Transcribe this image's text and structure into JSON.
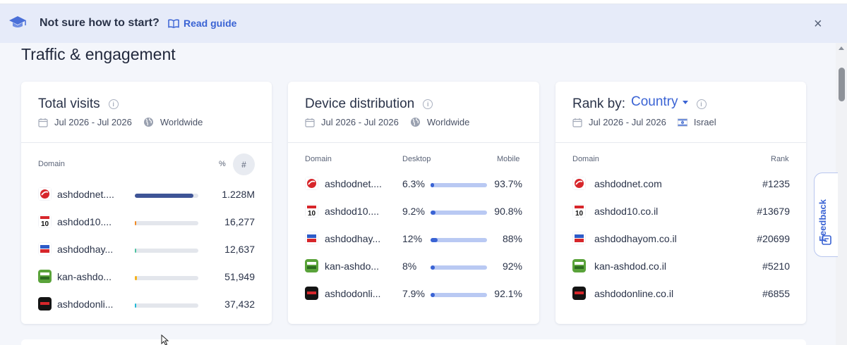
{
  "banner": {
    "message": "Not sure how to start?",
    "guide_label": "Read guide",
    "close_label": "×"
  },
  "section_title": "Traffic & engagement",
  "total_visits": {
    "title": "Total visits",
    "date_range": "Jul 2026 - Jul 2026",
    "region": "Worldwide",
    "headers": {
      "domain": "Domain",
      "percent": "%",
      "number": "#"
    },
    "rows": [
      {
        "domain": "ashdodnet....",
        "value": "1.228M",
        "share": 0.92,
        "color": "#3e5496"
      },
      {
        "domain": "ashdod10....",
        "value": "16,277",
        "share": 0.012,
        "color": "#f08a24"
      },
      {
        "domain": "ashdodhay...",
        "value": "12,637",
        "share": 0.009,
        "color": "#4fc3a1"
      },
      {
        "domain": "kan-ashdo...",
        "value": "51,949",
        "share": 0.037,
        "color": "#f5b21e"
      },
      {
        "domain": "ashdodonli...",
        "value": "37,432",
        "share": 0.027,
        "color": "#21b8d6"
      }
    ]
  },
  "device_distribution": {
    "title": "Device distribution",
    "date_range": "Jul 2026 - Jul 2026",
    "region": "Worldwide",
    "headers": {
      "domain": "Domain",
      "desktop": "Desktop",
      "mobile": "Mobile"
    },
    "rows": [
      {
        "domain": "ashdodnet....",
        "desktop": "6.3%",
        "mobile": "93.7%",
        "desktop_share": 0.063
      },
      {
        "domain": "ashdod10....",
        "desktop": "9.2%",
        "mobile": "90.8%",
        "desktop_share": 0.092
      },
      {
        "domain": "ashdodhay...",
        "desktop": "12%",
        "mobile": "88%",
        "desktop_share": 0.12
      },
      {
        "domain": "kan-ashdo...",
        "desktop": "8%",
        "mobile": "92%",
        "desktop_share": 0.08
      },
      {
        "domain": "ashdodonli...",
        "desktop": "7.9%",
        "mobile": "92.1%",
        "desktop_share": 0.079
      }
    ],
    "desktop_color": "#3a63d4",
    "mobile_color": "#b9c9f3"
  },
  "rank_by": {
    "title": "Rank by:",
    "selector": "Country",
    "date_range": "Jul 2026 - Jul 2026",
    "region": "Israel",
    "headers": {
      "domain": "Domain",
      "rank": "Rank"
    },
    "rows": [
      {
        "domain": "ashdodnet.com",
        "rank": "#1235"
      },
      {
        "domain": "ashdod10.co.il",
        "rank": "#13679"
      },
      {
        "domain": "ashdodhayom.co.il",
        "rank": "#20699"
      },
      {
        "domain": "kan-ashdod.co.il",
        "rank": "#5210"
      },
      {
        "domain": "ashdodonline.co.il",
        "rank": "#6855"
      }
    ]
  },
  "feedback_label": "Feedback",
  "icons": [
    "graduation-cap-icon",
    "book-icon",
    "close-icon",
    "info-icon",
    "calendar-icon",
    "globe-icon",
    "israel-flag-icon",
    "chevron-down-icon",
    "feedback-icon",
    "mouse-cursor-icon"
  ]
}
